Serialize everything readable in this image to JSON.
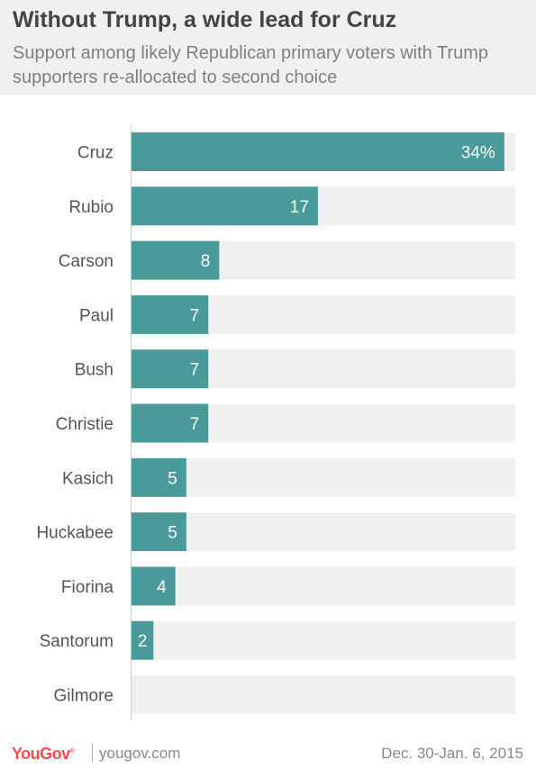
{
  "header": {
    "title": "Without Trump, a wide lead for Cruz",
    "subtitle": "Support among likely Republican primary voters with Trump supporters re-allocated to second choice"
  },
  "chart_data": {
    "type": "bar",
    "orientation": "horizontal",
    "categories": [
      "Cruz",
      "Rubio",
      "Carson",
      "Paul",
      "Bush",
      "Christie",
      "Kasich",
      "Huckabee",
      "Fiorina",
      "Santorum",
      "Gilmore"
    ],
    "values": [
      34,
      17,
      8,
      7,
      7,
      7,
      5,
      5,
      4,
      2,
      0
    ],
    "data_labels": [
      "34%",
      "17",
      "8",
      "7",
      "7",
      "7",
      "5",
      "5",
      "4",
      "2",
      ""
    ],
    "xlim": [
      0,
      35
    ],
    "bar_color": "#4a9a9a",
    "track_color": "#f0f0f0",
    "label_color": "#ffffff",
    "category_color": "#555555"
  },
  "footer": {
    "brand": "YouGov",
    "brand_mark": "®",
    "site": "yougov.com",
    "date": "Dec. 30-Jan. 6, 2015"
  }
}
